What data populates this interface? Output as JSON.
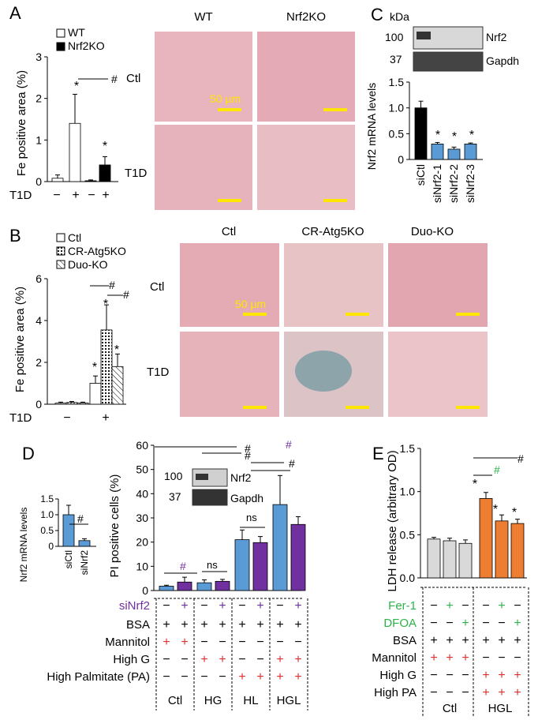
{
  "colors": {
    "blue": "#5b9bd5",
    "purple": "#7030a0",
    "orange": "#ed7d31",
    "grey": "#d9d9d9",
    "black": "#000000",
    "red": "#e03030",
    "green": "#2db34a",
    "scale": "#ffe600"
  },
  "panels": {
    "A": "A",
    "B": "B",
    "C": "C",
    "D": "D",
    "E": "E"
  },
  "micro": {
    "A": {
      "cols": [
        "WT",
        "Nrf2KO"
      ],
      "rows": [
        "Ctl",
        "T1D"
      ],
      "scale": "50 µm"
    },
    "B": {
      "cols": [
        "Ctl",
        "CR-Atg5KO",
        "Duo-KO"
      ],
      "rows": [
        "Ctl",
        "T1D"
      ],
      "scale": "50 µm"
    }
  },
  "blot_C": {
    "unit": "kDa",
    "marks": [
      "100",
      "37"
    ],
    "bands": [
      "Nrf2",
      "Gapdh"
    ]
  },
  "blot_D": {
    "marks": [
      "100",
      "37"
    ],
    "bands": [
      "Nrf2",
      "Gapdh"
    ]
  },
  "chart_data": [
    {
      "id": "A",
      "type": "bar",
      "ylabel": "Fe positive area (%)",
      "ylim": [
        0,
        3
      ],
      "yticks": [
        "0",
        "1",
        "2",
        "3"
      ],
      "legend": [
        "WT",
        "Nrf2KO"
      ],
      "xrow_label": "T1D",
      "xrow": [
        "−",
        "+",
        "−",
        "+"
      ],
      "series": [
        {
          "name": "WT",
          "values": [
            0.08,
            1.4
          ],
          "err": [
            0.08,
            0.7
          ]
        },
        {
          "name": "Nrf2KO",
          "values": [
            0.02,
            0.4
          ],
          "err": [
            0.02,
            0.2
          ]
        }
      ],
      "stars": [
        "*",
        "*"
      ],
      "sig": "#"
    },
    {
      "id": "B",
      "type": "bar",
      "ylabel": "Fe positive area (%)",
      "ylim": [
        0,
        6
      ],
      "yticks": [
        "0",
        "2",
        "4",
        "6"
      ],
      "legend": [
        "Ctl",
        "CR-Atg5KO",
        "Duo-KO"
      ],
      "xrow_label": "T1D",
      "xrow": [
        "−",
        "+"
      ],
      "series": [
        {
          "name": "Ctl",
          "values": [
            0.05,
            1.0
          ],
          "err": [
            0.05,
            0.35
          ]
        },
        {
          "name": "CR-Atg5KO",
          "values": [
            0.08,
            3.55
          ],
          "err": [
            0.05,
            1.2
          ]
        },
        {
          "name": "Duo-KO",
          "values": [
            0.06,
            1.8
          ],
          "err": [
            0.04,
            0.6
          ]
        }
      ],
      "stars": [
        "*",
        "*",
        "*"
      ],
      "sig": [
        "#",
        "#"
      ]
    },
    {
      "id": "C",
      "type": "bar",
      "ylabel": "Nrf2 mRNA levels",
      "ylim": [
        0,
        1.5
      ],
      "yticks": [
        "0",
        "0.5",
        "1.0",
        "1.5"
      ],
      "categories": [
        "siCtl",
        "siNrf2-1",
        "siNrf2-2",
        "siNrf2-3"
      ],
      "values": [
        1.0,
        0.3,
        0.2,
        0.3
      ],
      "err": [
        0.13,
        0.03,
        0.04,
        0.02
      ],
      "stars": [
        "*",
        "*",
        "*"
      ]
    },
    {
      "id": "D_small",
      "type": "bar",
      "ylabel": "Nrf2 mRNA levels",
      "ylim": [
        0,
        1.5
      ],
      "yticks": [
        "0",
        "0.5",
        "1.0",
        "1.5"
      ],
      "categories": [
        "siCtl",
        "siNrf2"
      ],
      "values": [
        1.0,
        0.18
      ],
      "err": [
        0.3,
        0.06
      ],
      "sig": "#"
    },
    {
      "id": "D_main",
      "type": "bar",
      "ylabel": "PI positive cells (%)",
      "ylim": [
        0,
        60
      ],
      "yticks": [
        "0",
        "10",
        "20",
        "30",
        "40",
        "50",
        "60"
      ],
      "groups": [
        "Ctl",
        "HG",
        "HL",
        "HGL"
      ],
      "series": [
        {
          "name": "siNrf2 −",
          "values": [
            1.8,
            3.2,
            21,
            35.5
          ],
          "err": [
            0.4,
            1.2,
            4,
            12
          ]
        },
        {
          "name": "siNrf2 +",
          "values": [
            3.5,
            3.8,
            19.8,
            27.3
          ],
          "err": [
            2,
            0.8,
            2.5,
            3.2
          ]
        }
      ],
      "marks": [
        "#",
        "ns",
        "ns",
        "#",
        "#",
        "#",
        "#",
        "#"
      ],
      "treat_rows": [
        {
          "label": "siNrf2",
          "vals": [
            "−",
            "+",
            "−",
            "+",
            "−",
            "+",
            "−",
            "+"
          ]
        },
        {
          "label": "BSA",
          "vals": [
            "+",
            "+",
            "+",
            "+",
            "+",
            "+",
            "+",
            "+"
          ]
        },
        {
          "label": "Mannitol",
          "vals": [
            "+",
            "+",
            "−",
            "−",
            "−",
            "−",
            "−",
            "−"
          ]
        },
        {
          "label": "High G",
          "vals": [
            "−",
            "−",
            "+",
            "+",
            "−",
            "−",
            "+",
            "+"
          ]
        },
        {
          "label": "High Palmitate (PA)",
          "vals": [
            "−",
            "−",
            "−",
            "−",
            "+",
            "+",
            "+",
            "+"
          ]
        }
      ]
    },
    {
      "id": "E",
      "type": "bar",
      "ylabel": "LDH release (arbitrary OD)",
      "ylim": [
        0,
        1.5
      ],
      "yticks": [
        "0.0",
        "0.5",
        "1.0",
        "1.5"
      ],
      "groups": [
        "Ctl",
        "HGL"
      ],
      "values": [
        0.45,
        0.43,
        0.4,
        0.92,
        0.66,
        0.63
      ],
      "err": [
        0.02,
        0.03,
        0.04,
        0.07,
        0.07,
        0.05
      ],
      "stars": [
        "*",
        "*",
        "*"
      ],
      "sig": [
        "#",
        "#"
      ],
      "treat_rows": [
        {
          "label": "Fer-1",
          "vals": [
            "−",
            "+",
            "−",
            "−",
            "+",
            "−"
          ]
        },
        {
          "label": "DFOA",
          "vals": [
            "−",
            "−",
            "+",
            "−",
            "−",
            "+"
          ]
        },
        {
          "label": "BSA",
          "vals": [
            "+",
            "+",
            "+",
            "+",
            "+",
            "+"
          ]
        },
        {
          "label": "Mannitol",
          "vals": [
            "+",
            "+",
            "+",
            "−",
            "−",
            "−"
          ]
        },
        {
          "label": "High G",
          "vals": [
            "−",
            "−",
            "−",
            "+",
            "+",
            "+"
          ]
        },
        {
          "label": "High PA",
          "vals": [
            "−",
            "−",
            "−",
            "+",
            "+",
            "+"
          ]
        }
      ]
    }
  ]
}
